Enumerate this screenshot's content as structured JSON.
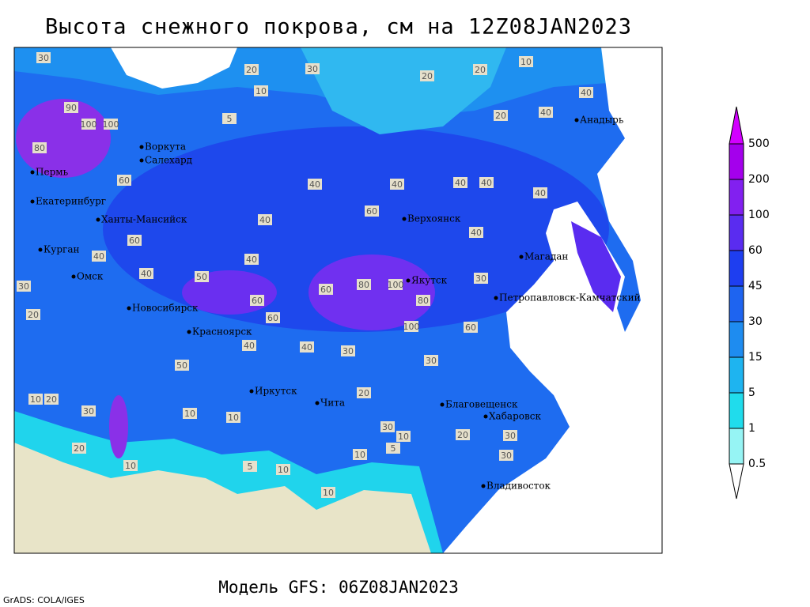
{
  "title": "Высота снежного покрова, см на 12Z08JAN2023",
  "model": "Модель GFS: 06Z08JAN2023",
  "credit": "GrADS: COLA/IGES",
  "cities": [
    "Воркута",
    "Салехард",
    "Пермь",
    "Екатеринбург",
    "Ханты-Мансийск",
    "Курган",
    "Омск",
    "Новосибирск",
    "Красноярск",
    "Иркутск",
    "Чита",
    "Верхоянск",
    "Якутск",
    "Магадан",
    "Петропавловск-Камчатский",
    "Анадырь",
    "Благовещенск",
    "Хабаровск",
    "Владивосток"
  ],
  "contour_labels": [
    30,
    90,
    100,
    100,
    80,
    60,
    30,
    20,
    20,
    10,
    5,
    30,
    20,
    20,
    10,
    40,
    20,
    40,
    40,
    40,
    40,
    40,
    40,
    60,
    40,
    40,
    40,
    60,
    40,
    40,
    50,
    60,
    60,
    80,
    100,
    80,
    100,
    60,
    30,
    60,
    40,
    40,
    30,
    30,
    50,
    30,
    10,
    10,
    20,
    30,
    10,
    5,
    10,
    10,
    5,
    20,
    30,
    30,
    10,
    20,
    10,
    10,
    20
  ],
  "colorbar": {
    "levels": [
      500,
      200,
      100,
      60,
      45,
      30,
      15,
      5,
      1,
      0.5
    ],
    "colors": [
      "#d200ff",
      "#a400ec",
      "#8220f0",
      "#5a2cf0",
      "#1e3ef0",
      "#1e64f0",
      "#1e8cf0",
      "#1eb4f0",
      "#20dcec",
      "#96f4f4",
      "#ffffff"
    ]
  }
}
